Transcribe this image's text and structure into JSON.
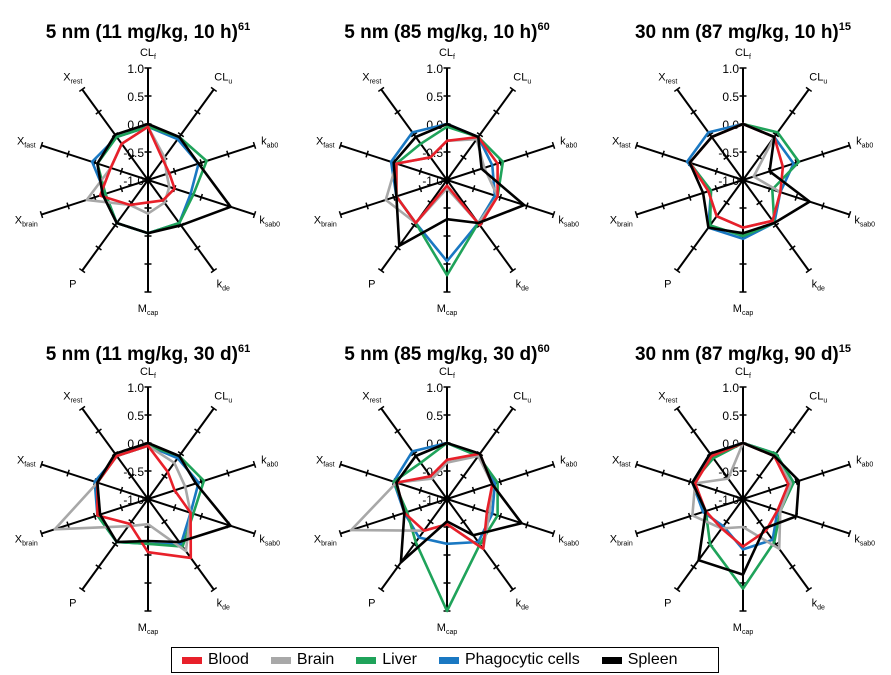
{
  "chart_data": [
    {
      "type": "radar",
      "title": "5 nm (11 mg/kg, 10 h)",
      "title_ref": "61",
      "axes": [
        {
          "main": "CL",
          "sub": "f"
        },
        {
          "main": "CL",
          "sub": "u"
        },
        {
          "main": "k",
          "sub": "ab0"
        },
        {
          "main": "k",
          "sub": "sab0"
        },
        {
          "main": "k",
          "sub": "de"
        },
        {
          "main": "M",
          "sub": "cap"
        },
        {
          "main": "P",
          "sub": ""
        },
        {
          "main": "X",
          "sub": "brain"
        },
        {
          "main": "X",
          "sub": "fast"
        },
        {
          "main": "X",
          "sub": "rest"
        }
      ],
      "rlim": [
        -1.0,
        1.0
      ],
      "tick_labels": [
        "1.0",
        "0.5",
        "0.0",
        "-0.5",
        "-1.0"
      ],
      "series": [
        {
          "name": "Blood",
          "values": [
            -0.05,
            -0.55,
            -0.6,
            -0.5,
            -0.55,
            -0.6,
            -0.45,
            -0.1,
            -0.3,
            -0.2
          ]
        },
        {
          "name": "Brain",
          "values": [
            -0.05,
            -0.5,
            -0.65,
            -0.6,
            -0.5,
            -0.4,
            -0.45,
            0.15,
            -0.3,
            -0.2
          ]
        },
        {
          "name": "Liver",
          "values": [
            -0.05,
            -0.05,
            0.1,
            -0.15,
            -0.05,
            -0.05,
            -0.05,
            -0.2,
            -0.05,
            -0.05
          ]
        },
        {
          "name": "Phagocytic cells",
          "values": [
            -0.05,
            -0.1,
            -0.05,
            -0.2,
            -0.05,
            -0.05,
            -0.05,
            -0.2,
            0.05,
            -0.05
          ]
        },
        {
          "name": "Spleen",
          "values": [
            0.0,
            -0.05,
            -0.05,
            0.55,
            0.0,
            -0.05,
            -0.05,
            -0.15,
            -0.05,
            0.0
          ]
        }
      ]
    },
    {
      "type": "radar",
      "title": "5 nm (85 mg/kg, 10 h)",
      "title_ref": "60",
      "axes": [
        {
          "main": "CL",
          "sub": "f"
        },
        {
          "main": "CL",
          "sub": "u"
        },
        {
          "main": "k",
          "sub": "ab0"
        },
        {
          "main": "k",
          "sub": "sab0"
        },
        {
          "main": "k",
          "sub": "de"
        },
        {
          "main": "M",
          "sub": "cap"
        },
        {
          "main": "P",
          "sub": ""
        },
        {
          "main": "X",
          "sub": "brain"
        },
        {
          "main": "X",
          "sub": "fast"
        },
        {
          "main": "X",
          "sub": "rest"
        }
      ],
      "rlim": [
        -1.0,
        1.0
      ],
      "tick_labels": [
        "1.0",
        "0.5",
        "0.0",
        "-0.5",
        "-1.0"
      ],
      "series": [
        {
          "name": "Blood",
          "values": [
            -0.3,
            -0.05,
            -0.05,
            -0.05,
            0.0,
            -0.9,
            -0.05,
            -0.05,
            -0.05,
            -0.5
          ]
        },
        {
          "name": "Brain",
          "values": [
            -0.3,
            -0.1,
            -0.3,
            -0.05,
            -0.05,
            -0.85,
            -0.05,
            0.15,
            -0.05,
            -0.5
          ]
        },
        {
          "name": "Liver",
          "values": [
            -0.05,
            -0.05,
            0.05,
            -0.05,
            -0.05,
            0.7,
            -0.05,
            -0.05,
            -0.05,
            -0.2
          ]
        },
        {
          "name": "Phagocytic cells",
          "values": [
            0.0,
            -0.05,
            -0.15,
            -0.1,
            -0.05,
            0.45,
            -0.05,
            -0.05,
            0.05,
            0.05
          ]
        },
        {
          "name": "Spleen",
          "values": [
            0.0,
            -0.05,
            -0.35,
            0.45,
            -0.05,
            -0.3,
            0.45,
            -0.05,
            0.0,
            -0.05
          ]
        }
      ]
    },
    {
      "type": "radar",
      "title": "30 nm (87 mg/kg, 10 h)",
      "title_ref": "15",
      "axes": [
        {
          "main": "CL",
          "sub": "f"
        },
        {
          "main": "CL",
          "sub": "u"
        },
        {
          "main": "k",
          "sub": "ab0"
        },
        {
          "main": "k",
          "sub": "sab0"
        },
        {
          "main": "k",
          "sub": "de"
        },
        {
          "main": "M",
          "sub": "cap"
        },
        {
          "main": "P",
          "sub": ""
        },
        {
          "main": "X",
          "sub": "brain"
        },
        {
          "main": "X",
          "sub": "fast"
        },
        {
          "main": "X",
          "sub": "rest"
        }
      ],
      "rlim": [
        -1.0,
        1.0
      ],
      "tick_labels": [
        "1.0",
        "0.5",
        "0.0",
        "-0.5",
        "-1.0"
      ],
      "series": [
        {
          "name": "Blood",
          "values": [
            0.0,
            -0.05,
            -0.25,
            -0.3,
            -0.1,
            -0.15,
            -0.2,
            -0.35,
            0.0,
            -0.05
          ]
        },
        {
          "name": "Brain",
          "values": [
            0.0,
            -0.05,
            -0.8,
            -0.3,
            -0.1,
            -0.15,
            -0.2,
            -0.35,
            0.0,
            -0.05
          ]
        },
        {
          "name": "Liver",
          "values": [
            0.0,
            0.05,
            0.05,
            -0.45,
            -0.05,
            0.0,
            0.0,
            -0.4,
            0.0,
            -0.05
          ]
        },
        {
          "name": "Phagocytic cells",
          "values": [
            0.0,
            -0.05,
            -0.05,
            -0.3,
            -0.05,
            0.05,
            0.05,
            -0.4,
            0.05,
            0.05
          ]
        },
        {
          "name": "Spleen",
          "values": [
            0.0,
            -0.05,
            -0.5,
            0.25,
            -0.05,
            -0.05,
            0.05,
            -0.25,
            0.0,
            -0.05
          ]
        }
      ]
    },
    {
      "type": "radar",
      "title": "5 nm (11 mg/kg, 30 d)",
      "title_ref": "61",
      "axes": [
        {
          "main": "CL",
          "sub": "f"
        },
        {
          "main": "CL",
          "sub": "u"
        },
        {
          "main": "k",
          "sub": "ab0"
        },
        {
          "main": "k",
          "sub": "sab0"
        },
        {
          "main": "k",
          "sub": "de"
        },
        {
          "main": "M",
          "sub": "cap"
        },
        {
          "main": "P",
          "sub": ""
        },
        {
          "main": "X",
          "sub": "brain"
        },
        {
          "main": "X",
          "sub": "fast"
        },
        {
          "main": "X",
          "sub": "rest"
        }
      ],
      "rlim": [
        -1.0,
        1.0
      ],
      "tick_labels": [
        "1.0",
        "0.5",
        "0.0",
        "-0.5",
        "-1.0"
      ],
      "series": [
        {
          "name": "Blood",
          "values": [
            -0.05,
            -0.4,
            -0.5,
            -0.2,
            0.3,
            -0.05,
            -0.45,
            -0.05,
            -0.05,
            -0.05
          ]
        },
        {
          "name": "Brain",
          "values": [
            -0.05,
            -0.2,
            -0.3,
            -0.2,
            0.15,
            -0.55,
            -0.4,
            0.75,
            -0.05,
            -0.05
          ]
        },
        {
          "name": "Liver",
          "values": [
            -0.05,
            -0.05,
            0.05,
            -0.15,
            0.05,
            -0.2,
            -0.05,
            -0.05,
            -0.05,
            -0.05
          ]
        },
        {
          "name": "Phagocytic cells",
          "values": [
            -0.05,
            -0.1,
            -0.05,
            -0.2,
            0.0,
            -0.2,
            -0.05,
            -0.05,
            0.0,
            -0.05
          ]
        },
        {
          "name": "Spleen",
          "values": [
            0.0,
            -0.05,
            -0.1,
            0.55,
            -0.05,
            -0.25,
            -0.05,
            -0.1,
            -0.05,
            0.0
          ]
        }
      ]
    },
    {
      "type": "radar",
      "title": "5 nm (85 mg/kg, 30 d)",
      "title_ref": "60",
      "axes": [
        {
          "main": "CL",
          "sub": "f"
        },
        {
          "main": "CL",
          "sub": "u"
        },
        {
          "main": "k",
          "sub": "ab0"
        },
        {
          "main": "k",
          "sub": "sab0"
        },
        {
          "main": "k",
          "sub": "de"
        },
        {
          "main": "M",
          "sub": "cap"
        },
        {
          "main": "P",
          "sub": ""
        },
        {
          "main": "X",
          "sub": "brain"
        },
        {
          "main": "X",
          "sub": "fast"
        },
        {
          "main": "X",
          "sub": "rest"
        }
      ],
      "rlim": [
        -1.0,
        1.0
      ],
      "tick_labels": [
        "1.0",
        "0.5",
        "0.0",
        "-0.5",
        "-1.0"
      ],
      "series": [
        {
          "name": "Blood",
          "values": [
            -0.3,
            0.0,
            -0.15,
            -0.25,
            0.1,
            -0.55,
            -0.3,
            -0.2,
            -0.05,
            -0.5
          ]
        },
        {
          "name": "Brain",
          "values": [
            -0.35,
            -0.05,
            -0.15,
            -0.2,
            0.1,
            -0.55,
            -0.3,
            0.8,
            -0.05,
            -0.55
          ]
        },
        {
          "name": "Liver",
          "values": [
            0.0,
            -0.05,
            -0.05,
            -0.05,
            0.0,
            1.0,
            -0.05,
            -0.25,
            0.0,
            -0.2
          ]
        },
        {
          "name": "Phagocytic cells",
          "values": [
            0.0,
            -0.05,
            -0.1,
            -0.15,
            -0.05,
            -0.2,
            -0.15,
            -0.2,
            0.0,
            0.05
          ]
        },
        {
          "name": "Spleen",
          "values": [
            0.0,
            0.0,
            -0.15,
            0.4,
            -0.2,
            -0.6,
            0.4,
            -0.2,
            -0.05,
            -0.05
          ]
        }
      ]
    },
    {
      "type": "radar",
      "title": "30 nm (87 mg/kg, 90 d)",
      "title_ref": "15",
      "axes": [
        {
          "main": "CL",
          "sub": "f"
        },
        {
          "main": "CL",
          "sub": "u"
        },
        {
          "main": "k",
          "sub": "ab0"
        },
        {
          "main": "k",
          "sub": "sab0"
        },
        {
          "main": "k",
          "sub": "de"
        },
        {
          "main": "M",
          "sub": "cap"
        },
        {
          "main": "P",
          "sub": ""
        },
        {
          "main": "X",
          "sub": "brain"
        },
        {
          "main": "X",
          "sub": "fast"
        },
        {
          "main": "X",
          "sub": "rest"
        }
      ],
      "rlim": [
        -1.0,
        1.0
      ],
      "tick_labels": [
        "1.0",
        "0.5",
        "0.0",
        "-0.5",
        "-1.0"
      ],
      "series": [
        {
          "name": "Blood",
          "values": [
            0.0,
            -0.05,
            -0.15,
            -0.35,
            -0.3,
            -0.15,
            -0.35,
            -0.3,
            -0.1,
            -0.05
          ]
        },
        {
          "name": "Brain",
          "values": [
            0.0,
            -0.05,
            -0.1,
            -0.3,
            0.1,
            -0.5,
            -0.35,
            -0.05,
            -0.1,
            -0.55
          ]
        },
        {
          "name": "Liver",
          "values": [
            0.0,
            0.0,
            -0.05,
            -0.3,
            -0.05,
            0.6,
            0.0,
            -0.3,
            -0.05,
            -0.1
          ]
        },
        {
          "name": "Phagocytic cells",
          "values": [
            0.0,
            0.0,
            -0.05,
            -0.35,
            -0.1,
            -0.1,
            -0.4,
            -0.25,
            -0.05,
            0.0
          ]
        },
        {
          "name": "Spleen",
          "values": [
            0.0,
            -0.05,
            0.05,
            0.0,
            -0.35,
            0.35,
            0.35,
            -0.3,
            -0.05,
            0.0
          ]
        }
      ]
    }
  ],
  "legend": [
    {
      "label": "Blood",
      "color": "#e8202a"
    },
    {
      "label": "Brain",
      "color": "#a8a8a8"
    },
    {
      "label": "Liver",
      "color": "#1fa35a"
    },
    {
      "label": "Phagocytic cells",
      "color": "#1a78c2"
    },
    {
      "label": "Spleen",
      "color": "#000000"
    }
  ]
}
